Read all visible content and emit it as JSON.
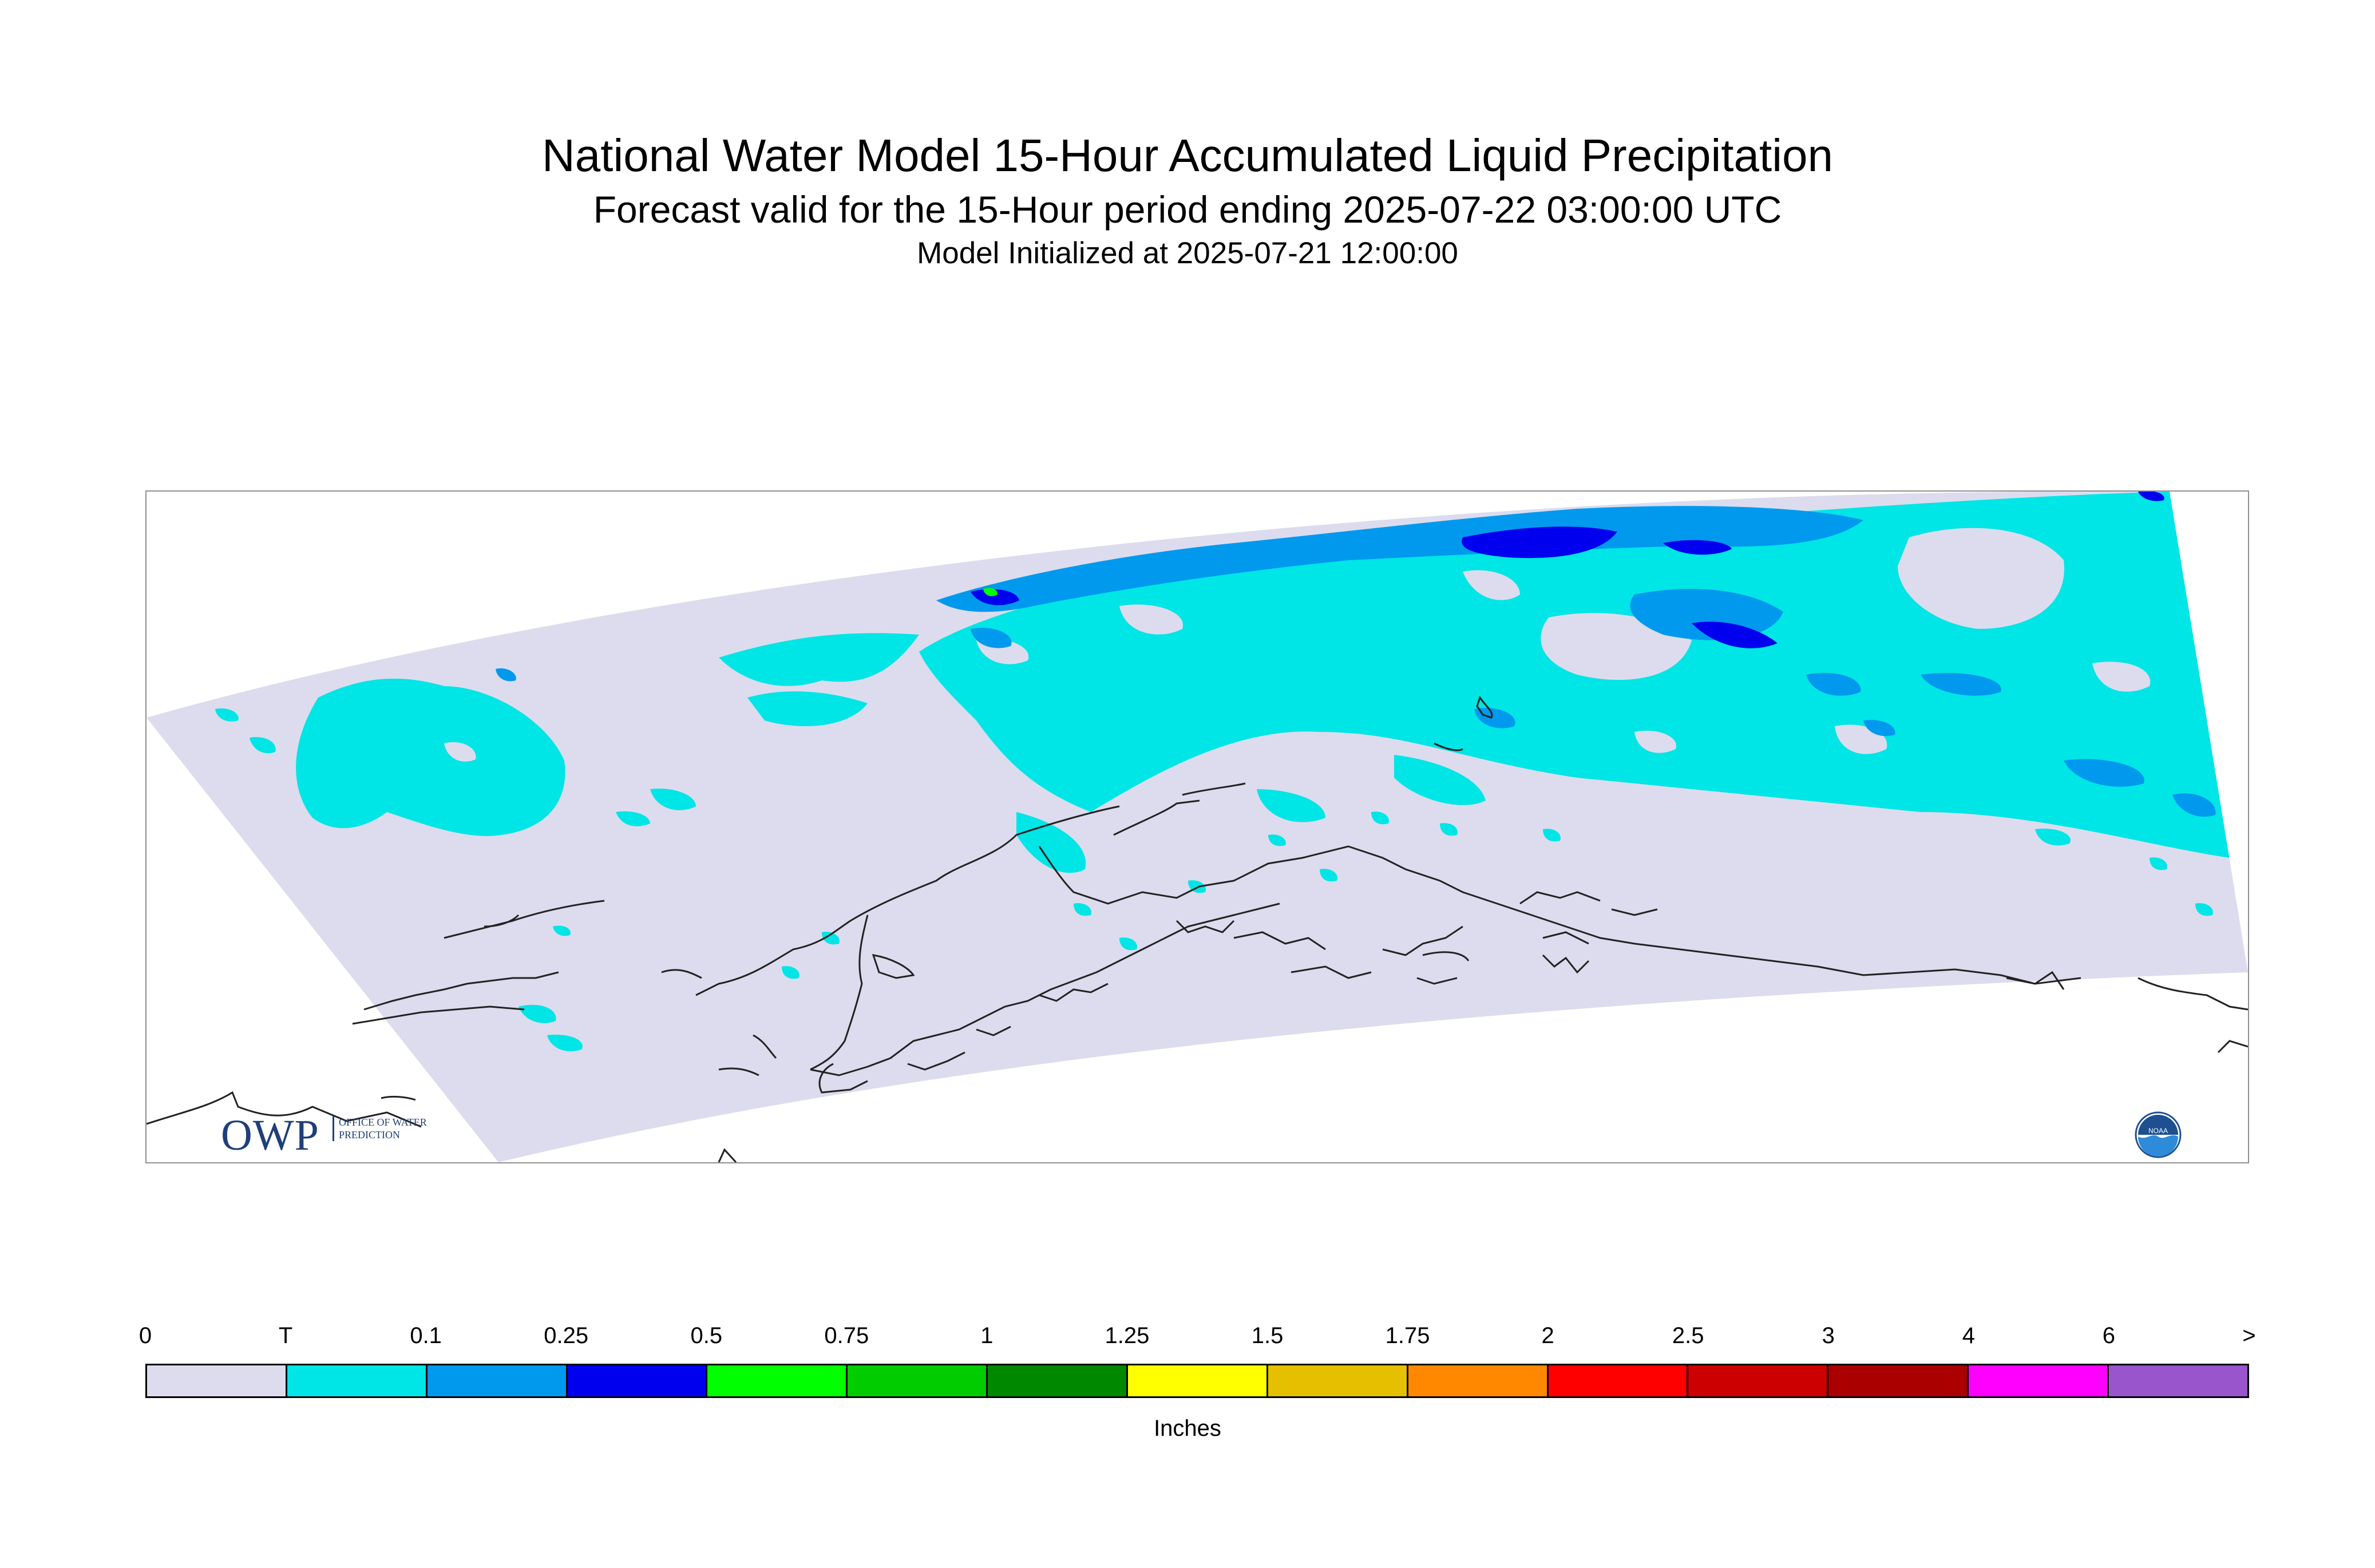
{
  "header": {
    "title": "National Water Model 15-Hour Accumulated Liquid Precipitation",
    "subtitle": "Forecast valid for the 15-Hour period ending 2025-07-22 03:00:00 UTC",
    "init_line": "Model Initialized at 2025-07-21 12:00:00"
  },
  "logos": {
    "owp_letters": "OWP",
    "owp_text": "OFFICE OF WATER PREDICTION",
    "noaa_text": "NOAA"
  },
  "legend": {
    "unit": "Inches",
    "tick_labels": [
      "0",
      "T",
      "0.1",
      "0.25",
      "0.5",
      "0.75",
      "1",
      "1.25",
      "1.5",
      "1.75",
      "2",
      "2.5",
      "3",
      "4",
      "6",
      ">"
    ],
    "colors": [
      "#dcdcee",
      "#00e5e5",
      "#0099ee",
      "#0000ee",
      "#00ff00",
      "#00cc00",
      "#008800",
      "#ffff00",
      "#e5c000",
      "#ff8800",
      "#ff0000",
      "#cc0000",
      "#aa0000",
      "#ff00ff",
      "#9955cc"
    ]
  },
  "map": {
    "colors": {
      "none": "#dcdcee",
      "trace": "#00e5e5",
      "light": "#0099ee",
      "moderate": "#0000ee",
      "heavy": "#00ff00",
      "coast": "#222222"
    }
  }
}
